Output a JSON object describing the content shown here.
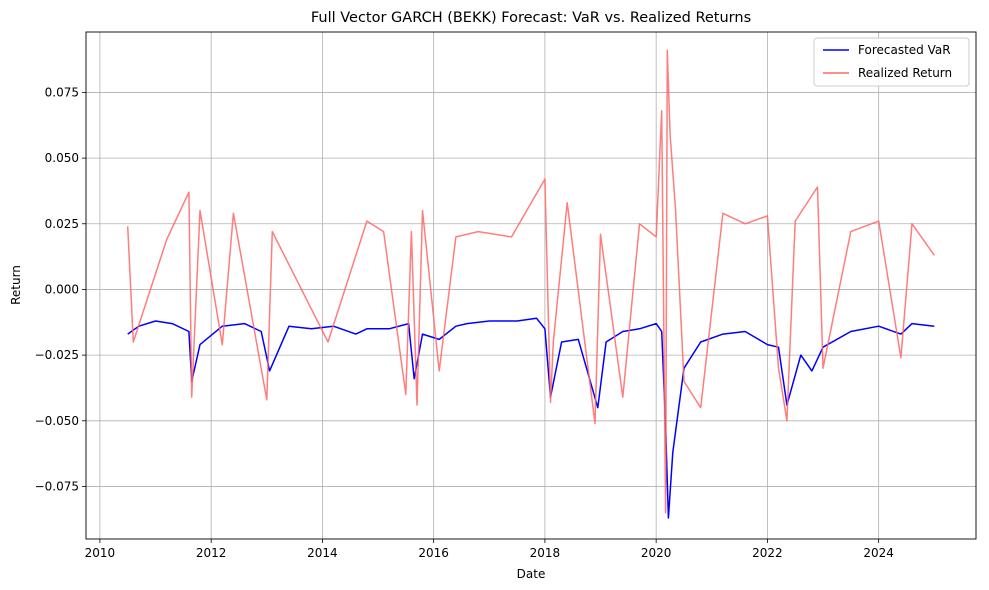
{
  "chart_data": {
    "type": "line",
    "title": "Full Vector GARCH (BEKK) Forecast: VaR vs. Realized Returns",
    "xlabel": "Date",
    "ylabel": "Return",
    "xlim": [
      2009.75,
      2025.75
    ],
    "ylim": [
      -0.095,
      0.098
    ],
    "x_ticks": [
      2010,
      2012,
      2014,
      2016,
      2018,
      2020,
      2022,
      2024
    ],
    "x_tick_labels": [
      "2010",
      "2012",
      "2014",
      "2016",
      "2018",
      "2020",
      "2022",
      "2024"
    ],
    "y_ticks": [
      -0.075,
      -0.05,
      -0.025,
      0.0,
      0.025,
      0.05,
      0.075
    ],
    "y_tick_labels": [
      "−0.075",
      "−0.050",
      "−0.025",
      "0.000",
      "0.025",
      "0.050",
      "0.075"
    ],
    "grid": true,
    "legend_position": "top-right",
    "series": [
      {
        "name": "Forecasted VaR",
        "color": "#0000ff",
        "x": [
          2010.5,
          2010.7,
          2011.0,
          2011.3,
          2011.6,
          2011.65,
          2011.8,
          2012.2,
          2012.6,
          2012.9,
          2013.05,
          2013.4,
          2013.8,
          2014.2,
          2014.6,
          2014.8,
          2015.2,
          2015.55,
          2015.65,
          2015.8,
          2016.1,
          2016.4,
          2016.6,
          2017.0,
          2017.5,
          2017.85,
          2018.0,
          2018.1,
          2018.3,
          2018.6,
          2018.95,
          2019.1,
          2019.4,
          2019.7,
          2020.0,
          2020.1,
          2020.17,
          2020.22,
          2020.3,
          2020.5,
          2020.8,
          2021.2,
          2021.6,
          2022.0,
          2022.2,
          2022.35,
          2022.6,
          2022.8,
          2023.0,
          2023.5,
          2024.0,
          2024.4,
          2024.6,
          2025.0
        ],
        "values": [
          -0.017,
          -0.014,
          -0.012,
          -0.013,
          -0.016,
          -0.035,
          -0.021,
          -0.014,
          -0.013,
          -0.016,
          -0.031,
          -0.014,
          -0.015,
          -0.014,
          -0.017,
          -0.015,
          -0.015,
          -0.013,
          -0.034,
          -0.017,
          -0.019,
          -0.014,
          -0.013,
          -0.012,
          -0.012,
          -0.011,
          -0.015,
          -0.041,
          -0.02,
          -0.019,
          -0.045,
          -0.02,
          -0.016,
          -0.015,
          -0.013,
          -0.016,
          -0.052,
          -0.087,
          -0.062,
          -0.03,
          -0.02,
          -0.017,
          -0.016,
          -0.021,
          -0.022,
          -0.044,
          -0.025,
          -0.031,
          -0.022,
          -0.016,
          -0.014,
          -0.017,
          -0.013,
          -0.014
        ]
      },
      {
        "name": "Realized Return",
        "color": "#ff6666",
        "x": [
          2010.5,
          2010.6,
          2011.2,
          2011.6,
          2011.65,
          2011.8,
          2012.2,
          2012.4,
          2013.0,
          2013.1,
          2014.1,
          2014.8,
          2015.1,
          2015.5,
          2015.6,
          2015.7,
          2015.8,
          2016.1,
          2016.4,
          2016.8,
          2017.4,
          2018.0,
          2018.1,
          2018.15,
          2018.4,
          2018.9,
          2019.0,
          2019.4,
          2019.7,
          2020.0,
          2020.1,
          2020.17,
          2020.2,
          2020.25,
          2020.35,
          2020.5,
          2020.8,
          2021.2,
          2021.6,
          2022.0,
          2022.2,
          2022.35,
          2022.5,
          2022.9,
          2023.0,
          2023.5,
          2024.0,
          2024.4,
          2024.6,
          2025.0
        ],
        "values": [
          0.024,
          -0.02,
          0.019,
          0.037,
          -0.041,
          0.03,
          -0.021,
          0.029,
          -0.042,
          0.022,
          -0.02,
          0.026,
          0.022,
          -0.04,
          0.022,
          -0.044,
          0.03,
          -0.031,
          0.02,
          0.022,
          0.02,
          0.042,
          -0.043,
          -0.02,
          0.033,
          -0.051,
          0.021,
          -0.041,
          0.025,
          0.02,
          0.068,
          -0.085,
          0.091,
          0.059,
          0.03,
          -0.035,
          -0.045,
          0.029,
          0.025,
          0.028,
          -0.03,
          -0.05,
          0.026,
          0.039,
          -0.03,
          0.022,
          0.026,
          -0.026,
          0.025,
          0.013
        ]
      }
    ]
  }
}
